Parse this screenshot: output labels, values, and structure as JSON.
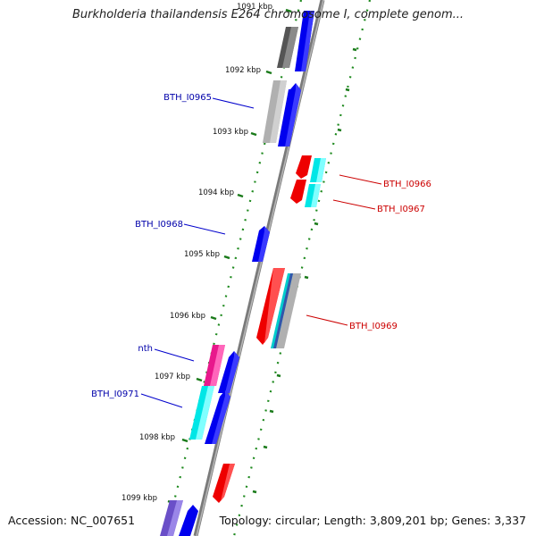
{
  "title": "Burkholderia thailandensis E264 chromosome I, complete genom...",
  "footer": {
    "accession": "Accession: NC_007651",
    "summary": "Topology: circular; Length: 3,809,201 bp; Genes: 3,337"
  },
  "colors": {
    "backbone": "#808080",
    "forward_cds": "#0000ee",
    "reverse_cds": "#ee0000",
    "grey_feature": "#a8a8a8",
    "cyan_feature": "#00e6e6",
    "magenta_feature": "#e8188c",
    "tick_green": "#1a7a1a",
    "label_blue": "#0000aa",
    "label_red": "#cc0000"
  },
  "kbp_ticks": [
    "1091 kbp",
    "1092 kbp",
    "1093 kbp",
    "1094 kbp",
    "1095 kbp",
    "1096 kbp",
    "1097 kbp",
    "1098 kbp",
    "1099 kbp"
  ],
  "gene_labels": [
    {
      "text": "BTH_I0965",
      "strand": "forward"
    },
    {
      "text": "BTH_I0966",
      "strand": "reverse"
    },
    {
      "text": "BTH_I0967",
      "strand": "reverse"
    },
    {
      "text": "BTH_I0968",
      "strand": "forward"
    },
    {
      "text": "BTH_I0969",
      "strand": "reverse"
    },
    {
      "text": "nth",
      "strand": "forward"
    },
    {
      "text": "BTH_I0971",
      "strand": "forward"
    }
  ]
}
